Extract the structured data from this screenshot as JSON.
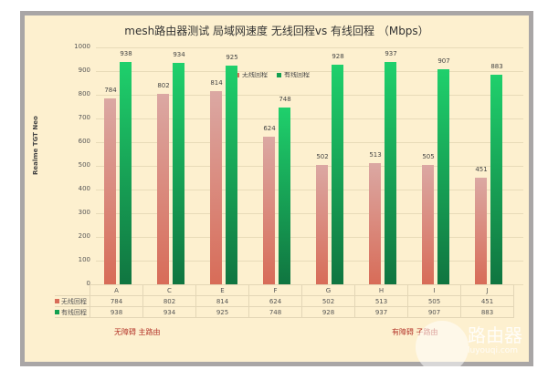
{
  "chart_data": {
    "type": "bar",
    "title": "mesh路由器测试 局域网速度 无线回程vs 有线回程 （Mbps）",
    "xlabel": "",
    "ylabel": "Realme TGT Neo",
    "ylim": [
      0,
      1000
    ],
    "yticks": [
      0,
      100,
      200,
      300,
      400,
      500,
      600,
      700,
      800,
      900,
      1000
    ],
    "categories": [
      "A",
      "C",
      "E",
      "F",
      "G",
      "H",
      "I",
      "J"
    ],
    "series": [
      {
        "name": "无线回程",
        "color": "#d86c58",
        "values": [
          784,
          802,
          814,
          624,
          502,
          513,
          505,
          451
        ]
      },
      {
        "name": "有线回程",
        "color": "#13a050",
        "values": [
          938,
          934,
          925,
          748,
          928,
          937,
          907,
          883
        ]
      }
    ],
    "legend_position": "top",
    "grid": true,
    "data_table": true,
    "annotations": [
      "无障碍 主路由",
      "有障碍 子路由"
    ]
  },
  "watermark": {
    "text": "路由器",
    "url": "luyouqi.com"
  }
}
